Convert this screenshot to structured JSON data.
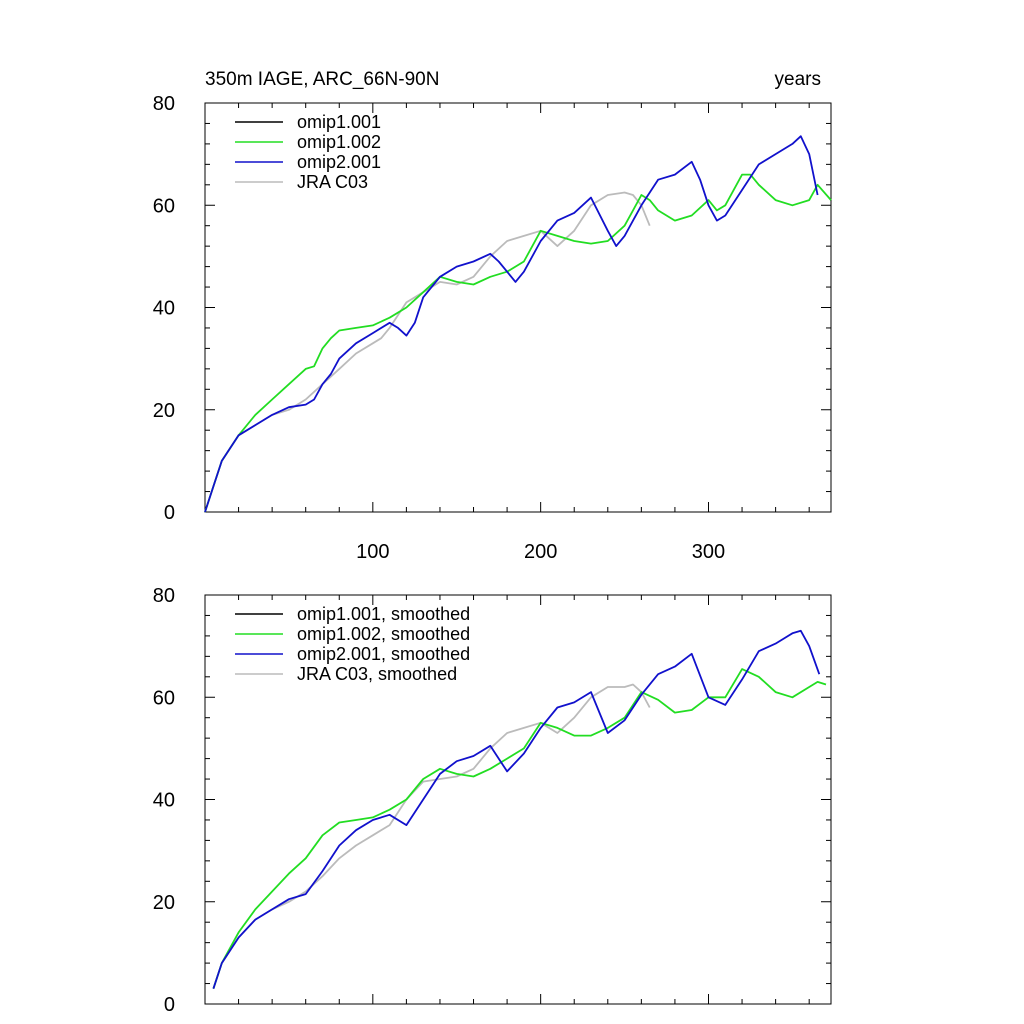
{
  "colors": {
    "omip1_001": "#000000",
    "omip1_002": "#22dd22",
    "omip2_001": "#1111cc",
    "jra_c03": "#bbbbbb",
    "axis": "#000000"
  },
  "chart_data": [
    {
      "type": "line",
      "title": "350m IAGE, ARC_66N-90N",
      "units_label": "years",
      "xlim": [
        0,
        373
      ],
      "ylim": [
        0,
        80
      ],
      "xticks": [
        100,
        200,
        300
      ],
      "yticks": [
        0,
        20,
        40,
        60,
        80
      ],
      "x_tick_labels_shown": true,
      "series": [
        {
          "name": "omip1.001",
          "color_key": "omip1_001",
          "x": [],
          "values": []
        },
        {
          "name": "omip1.002",
          "color_key": "omip1_002",
          "x": [
            0,
            5,
            10,
            20,
            30,
            40,
            50,
            60,
            65,
            70,
            75,
            80,
            90,
            100,
            110,
            120,
            130,
            140,
            150,
            160,
            170,
            180,
            190,
            200,
            210,
            220,
            230,
            240,
            250,
            255,
            260,
            265,
            270,
            280,
            290,
            300,
            305,
            310,
            320,
            325,
            330,
            340,
            350,
            360,
            365,
            373
          ],
          "values": [
            0,
            5,
            10,
            15,
            19,
            22,
            25,
            28,
            28.5,
            32,
            34,
            35.5,
            36,
            36.5,
            38,
            40,
            43,
            46,
            45,
            44.5,
            46,
            47,
            49,
            55,
            54,
            53,
            52.5,
            53,
            56,
            59,
            62,
            61,
            59,
            57,
            58,
            61,
            59,
            60,
            66,
            66,
            64,
            61,
            60,
            61,
            64,
            61
          ]
        },
        {
          "name": "omip2.001",
          "color_key": "omip2_001",
          "x": [
            0,
            5,
            10,
            20,
            30,
            40,
            50,
            60,
            65,
            70,
            75,
            80,
            90,
            100,
            110,
            115,
            120,
            125,
            130,
            140,
            150,
            160,
            170,
            175,
            180,
            185,
            190,
            200,
            210,
            220,
            230,
            240,
            245,
            250,
            260,
            270,
            280,
            290,
            295,
            300,
            305,
            310,
            320,
            330,
            340,
            350,
            355,
            360,
            365
          ],
          "values": [
            0,
            5,
            10,
            15,
            17,
            19,
            20.5,
            21,
            22,
            25,
            27,
            30,
            33,
            35,
            37,
            36,
            34.5,
            37,
            42,
            46,
            48,
            49,
            50.5,
            49,
            47,
            45,
            47,
            53,
            57,
            58.5,
            61.5,
            55,
            52,
            54,
            60,
            65,
            66,
            68.5,
            65,
            60,
            57,
            58,
            63,
            68,
            70,
            72,
            73.5,
            70,
            62
          ]
        },
        {
          "name": "JRA C03",
          "color_key": "jra_c03",
          "x": [
            0,
            5,
            10,
            20,
            30,
            40,
            50,
            60,
            70,
            80,
            90,
            100,
            105,
            110,
            120,
            130,
            140,
            150,
            160,
            170,
            180,
            190,
            200,
            210,
            220,
            230,
            240,
            250,
            255,
            260,
            265
          ],
          "values": [
            0,
            5,
            10,
            15,
            17,
            19,
            20,
            22,
            25,
            28,
            31,
            33,
            34,
            36,
            41,
            43,
            45,
            44.5,
            46,
            50,
            53,
            54,
            55,
            52,
            55,
            60,
            62,
            62.5,
            62,
            60,
            56
          ]
        }
      ]
    },
    {
      "type": "line",
      "title": "",
      "units_label": "",
      "xlim": [
        0,
        373
      ],
      "ylim": [
        0,
        80
      ],
      "xticks": [
        100,
        200,
        300
      ],
      "yticks": [
        0,
        20,
        40,
        60,
        80
      ],
      "x_tick_labels_shown": false,
      "series": [
        {
          "name": "omip1.001, smoothed",
          "color_key": "omip1_001",
          "x": [],
          "values": []
        },
        {
          "name": "omip1.002, smoothed",
          "color_key": "omip1_002",
          "x": [
            5,
            10,
            20,
            30,
            40,
            50,
            60,
            70,
            80,
            90,
            100,
            110,
            120,
            130,
            140,
            150,
            160,
            170,
            180,
            190,
            200,
            210,
            220,
            230,
            240,
            250,
            260,
            270,
            280,
            290,
            300,
            310,
            320,
            330,
            340,
            350,
            360,
            365,
            370
          ],
          "values": [
            3,
            8,
            14,
            18.5,
            22,
            25.5,
            28.5,
            33,
            35.5,
            36,
            36.5,
            38,
            40,
            44,
            46,
            45,
            44.5,
            46,
            48,
            50,
            55,
            54,
            52.5,
            52.5,
            54,
            56,
            61,
            59.5,
            57,
            57.5,
            60,
            60,
            65.5,
            64,
            61,
            60,
            62,
            63,
            62.5
          ]
        },
        {
          "name": "omip2.001, smoothed",
          "color_key": "omip2_001",
          "x": [
            5,
            10,
            20,
            30,
            40,
            50,
            60,
            70,
            80,
            90,
            100,
            110,
            120,
            130,
            140,
            150,
            160,
            170,
            180,
            190,
            200,
            210,
            220,
            230,
            240,
            250,
            260,
            270,
            280,
            290,
            300,
            310,
            320,
            330,
            340,
            350,
            355,
            360,
            366
          ],
          "values": [
            3,
            8,
            13,
            16.5,
            18.5,
            20.5,
            21.5,
            26,
            31,
            34,
            36,
            37,
            35,
            40,
            45,
            47.5,
            48.5,
            50.5,
            45.5,
            49,
            54,
            58,
            59,
            61,
            53,
            55.5,
            60.5,
            64.5,
            66,
            68.5,
            60,
            58.5,
            63.5,
            69,
            70.5,
            72.5,
            73,
            70,
            64.5
          ]
        },
        {
          "name": "JRA C03, smoothed",
          "color_key": "jra_c03",
          "x": [
            5,
            10,
            20,
            30,
            40,
            50,
            60,
            70,
            80,
            90,
            100,
            110,
            120,
            130,
            140,
            150,
            160,
            170,
            180,
            190,
            200,
            210,
            220,
            230,
            240,
            250,
            255,
            260,
            265
          ],
          "values": [
            3,
            8,
            13,
            16.5,
            18.5,
            20,
            22,
            25,
            28.5,
            31,
            33,
            35,
            40,
            43.5,
            44,
            44.5,
            46,
            50,
            53,
            54,
            55,
            53,
            56,
            60,
            62,
            62,
            62.5,
            61,
            58
          ]
        }
      ]
    }
  ]
}
